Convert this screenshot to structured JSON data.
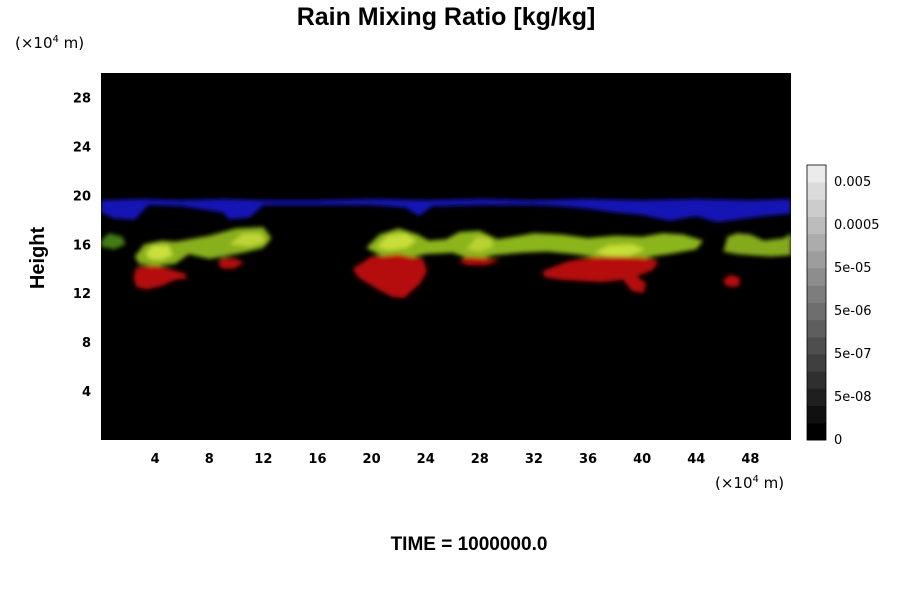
{
  "chart_data": {
    "type": "heatmap",
    "title": "Rain Mixing Ratio [kg/kg]",
    "ylabel": "Height",
    "x_unit_label": "(×10",
    "x_unit_exp": "4",
    "x_unit_tail": " m)",
    "y_unit_label": "(×10",
    "y_unit_exp": "4",
    "y_unit_tail": " m)",
    "xlim": [
      0,
      51
    ],
    "ylim": [
      0,
      30
    ],
    "x_ticks": [
      {
        "value": 4,
        "label": "4"
      },
      {
        "value": 8,
        "label": "8"
      },
      {
        "value": 12,
        "label": "12"
      },
      {
        "value": 16,
        "label": "16"
      },
      {
        "value": 20,
        "label": "20"
      },
      {
        "value": 24,
        "label": "24"
      },
      {
        "value": 28,
        "label": "28"
      },
      {
        "value": 32,
        "label": "32"
      },
      {
        "value": 36,
        "label": "36"
      },
      {
        "value": 40,
        "label": "40"
      },
      {
        "value": 44,
        "label": "44"
      },
      {
        "value": 48,
        "label": "48"
      }
    ],
    "y_ticks": [
      {
        "value": 4,
        "label": "4"
      },
      {
        "value": 8,
        "label": "8"
      },
      {
        "value": 12,
        "label": "12"
      },
      {
        "value": 16,
        "label": "16"
      },
      {
        "value": 20,
        "label": "20"
      },
      {
        "value": 24,
        "label": "24"
      },
      {
        "value": 28,
        "label": "28"
      }
    ],
    "background_color": "#000000",
    "colorbar": {
      "levels": 16,
      "labels": [
        "0",
        "5e-08",
        "5e-07",
        "5e-06",
        "5e-05",
        "0.0005",
        "0.005"
      ],
      "label_levels": [
        0,
        2.5,
        5,
        7.5,
        10,
        12.5,
        15
      ]
    },
    "regions": [
      {
        "name": "blue-band",
        "color": "#1a1ad6",
        "opacity": 0.85,
        "points": [
          [
            0,
            19.6
          ],
          [
            3,
            19.7
          ],
          [
            6,
            19.6
          ],
          [
            9,
            19.7
          ],
          [
            12,
            19.6
          ],
          [
            16,
            19.6
          ],
          [
            20,
            19.7
          ],
          [
            24,
            19.6
          ],
          [
            28,
            19.7
          ],
          [
            32,
            19.6
          ],
          [
            36,
            19.7
          ],
          [
            40,
            19.6
          ],
          [
            44,
            19.7
          ],
          [
            48,
            19.6
          ],
          [
            51,
            19.7
          ],
          [
            51,
            18.5
          ],
          [
            49,
            18.3
          ],
          [
            47,
            18
          ],
          [
            45.5,
            17.8
          ],
          [
            44,
            18.3
          ],
          [
            42,
            17.9
          ],
          [
            40,
            18.4
          ],
          [
            38,
            18.6
          ],
          [
            36,
            18.9
          ],
          [
            34,
            19.1
          ],
          [
            32,
            19.2
          ],
          [
            28,
            19.2
          ],
          [
            24.5,
            19.1
          ],
          [
            23.5,
            18.3
          ],
          [
            22.5,
            19
          ],
          [
            20,
            19.2
          ],
          [
            16,
            19.2
          ],
          [
            12,
            19.2
          ],
          [
            11,
            18.2
          ],
          [
            9.5,
            18
          ],
          [
            9,
            18.6
          ],
          [
            6,
            19.1
          ],
          [
            3.5,
            19.2
          ],
          [
            2.5,
            18
          ],
          [
            1,
            18.1
          ],
          [
            0,
            18.6
          ]
        ]
      },
      {
        "name": "green-core-1",
        "color": "#8fb81f",
        "opacity": 0.95,
        "points": [
          [
            2.5,
            15
          ],
          [
            3.2,
            16
          ],
          [
            4.5,
            16.3
          ],
          [
            5.5,
            16.2
          ],
          [
            6.5,
            16.4
          ],
          [
            8,
            16.7
          ],
          [
            10,
            17.3
          ],
          [
            12,
            17.4
          ],
          [
            12.6,
            16.5
          ],
          [
            12,
            15.7
          ],
          [
            10.5,
            15.3
          ],
          [
            9,
            15
          ],
          [
            8,
            14.8
          ],
          [
            6.5,
            15.2
          ],
          [
            5.5,
            14.4
          ],
          [
            4,
            14.2
          ],
          [
            2.8,
            14.4
          ]
        ]
      },
      {
        "name": "green-core-2",
        "color": "#93bf20",
        "opacity": 0.95,
        "points": [
          [
            19.6,
            15.7
          ],
          [
            20.6,
            16.8
          ],
          [
            22,
            17.3
          ],
          [
            23.4,
            16.8
          ],
          [
            24.2,
            16.3
          ],
          [
            25.5,
            16.4
          ],
          [
            26.5,
            17
          ],
          [
            28,
            17.1
          ],
          [
            29.3,
            16.4
          ],
          [
            30.5,
            16.6
          ],
          [
            32,
            16.9
          ],
          [
            34,
            16.8
          ],
          [
            36,
            16.5
          ],
          [
            38,
            16.7
          ],
          [
            40,
            16.6
          ],
          [
            41.5,
            16.9
          ],
          [
            43,
            16.8
          ],
          [
            44.5,
            16.3
          ],
          [
            44,
            15.6
          ],
          [
            42,
            15.2
          ],
          [
            40,
            14.9
          ],
          [
            38.5,
            14.6
          ],
          [
            37,
            14.9
          ],
          [
            35,
            15.2
          ],
          [
            33,
            15.4
          ],
          [
            31,
            15.3
          ],
          [
            29,
            15.1
          ],
          [
            27.5,
            14.7
          ],
          [
            26,
            15.3
          ],
          [
            24,
            15.2
          ],
          [
            22.5,
            14.8
          ],
          [
            21,
            14.9
          ]
        ]
      },
      {
        "name": "green-core-3",
        "color": "#8bb31e",
        "opacity": 0.95,
        "points": [
          [
            46,
            15.4
          ],
          [
            46.3,
            16.6
          ],
          [
            47,
            16.9
          ],
          [
            48,
            16.8
          ],
          [
            49,
            16.3
          ],
          [
            50.5,
            16.5
          ],
          [
            51,
            16.9
          ],
          [
            51,
            15.1
          ],
          [
            49.5,
            15
          ],
          [
            48,
            15.1
          ],
          [
            47,
            15.2
          ]
        ]
      },
      {
        "name": "green-edge-left",
        "color": "#4a8a1a",
        "opacity": 0.9,
        "points": [
          [
            0,
            16.3
          ],
          [
            0.6,
            16.9
          ],
          [
            1.6,
            16.6
          ],
          [
            1.8,
            16
          ],
          [
            1,
            15.6
          ],
          [
            0,
            15.8
          ]
        ]
      },
      {
        "name": "red-1",
        "color": "#b50d0d",
        "opacity": 1,
        "points": [
          [
            2.4,
            13.3
          ],
          [
            2.6,
            14.1
          ],
          [
            4,
            14.3
          ],
          [
            5,
            14
          ],
          [
            6.2,
            13.6
          ],
          [
            6.4,
            13.2
          ],
          [
            5.5,
            13.1
          ],
          [
            4.5,
            12.6
          ],
          [
            3.4,
            12.3
          ],
          [
            2.6,
            12.5
          ]
        ]
      },
      {
        "name": "red-1b",
        "color": "#b50d0d",
        "opacity": 1,
        "points": [
          [
            8.6,
            14.4
          ],
          [
            9,
            14.9
          ],
          [
            10,
            14.8
          ],
          [
            10.6,
            14.5
          ],
          [
            9.8,
            14
          ],
          [
            9,
            14
          ]
        ]
      },
      {
        "name": "red-2",
        "color": "#b50d0d",
        "opacity": 1,
        "points": [
          [
            18.6,
            14
          ],
          [
            20,
            15
          ],
          [
            22,
            15.2
          ],
          [
            23.8,
            14.8
          ],
          [
            24.1,
            13.8
          ],
          [
            23.6,
            12.8
          ],
          [
            22.8,
            12
          ],
          [
            22.4,
            11.6
          ],
          [
            21.5,
            11.7
          ],
          [
            20.3,
            12.4
          ],
          [
            19,
            13.3
          ]
        ]
      },
      {
        "name": "red-3",
        "color": "#b50d0d",
        "opacity": 1,
        "points": [
          [
            32.6,
            13.8
          ],
          [
            34.5,
            14.6
          ],
          [
            36.5,
            15
          ],
          [
            38.5,
            15
          ],
          [
            40.5,
            14.9
          ],
          [
            41.2,
            14.6
          ],
          [
            40.8,
            13.9
          ],
          [
            39.6,
            13.4
          ],
          [
            40.3,
            12.8
          ],
          [
            40.1,
            12
          ],
          [
            39.2,
            12.2
          ],
          [
            38.6,
            13.1
          ],
          [
            37,
            12.9
          ],
          [
            35.5,
            13
          ],
          [
            34,
            13.1
          ],
          [
            32.8,
            13.3
          ]
        ]
      },
      {
        "name": "red-4",
        "color": "#b50d0d",
        "opacity": 1,
        "points": [
          [
            46,
            13.1
          ],
          [
            46.5,
            13.5
          ],
          [
            47.2,
            13.3
          ],
          [
            47.2,
            12.6
          ],
          [
            46.6,
            12.5
          ],
          [
            46.1,
            12.7
          ]
        ]
      },
      {
        "name": "red-5",
        "color": "#b50d0d",
        "opacity": 1,
        "points": [
          [
            26.5,
            14.5
          ],
          [
            27,
            15
          ],
          [
            28.5,
            14.9
          ],
          [
            29.5,
            14.7
          ],
          [
            28.5,
            14.3
          ],
          [
            27.2,
            14.3
          ]
        ]
      },
      {
        "name": "highlight-1",
        "color": "#d0e640",
        "opacity": 0.9,
        "points": [
          [
            3.3,
            15.2
          ],
          [
            3.8,
            15.9
          ],
          [
            5,
            15.9
          ],
          [
            5.3,
            15.1
          ],
          [
            4.4,
            14.7
          ],
          [
            3.6,
            14.8
          ]
        ]
      },
      {
        "name": "highlight-2",
        "color": "#cfe23c",
        "opacity": 0.9,
        "points": [
          [
            20.4,
            15.8
          ],
          [
            21.2,
            16.7
          ],
          [
            22.5,
            16.9
          ],
          [
            23.3,
            16.3
          ],
          [
            22.6,
            15.7
          ],
          [
            21.2,
            15.5
          ]
        ]
      },
      {
        "name": "highlight-3",
        "color": "#cde23a",
        "opacity": 0.9,
        "points": [
          [
            36.5,
            15.3
          ],
          [
            37.5,
            15.9
          ],
          [
            39.2,
            16
          ],
          [
            40.2,
            15.6
          ],
          [
            39,
            15
          ],
          [
            37.6,
            15
          ]
        ]
      },
      {
        "name": "highlight-4",
        "color": "#c7dc38",
        "opacity": 0.85,
        "points": [
          [
            9.5,
            16
          ],
          [
            10.5,
            16.9
          ],
          [
            11.8,
            16.9
          ],
          [
            12.2,
            16.2
          ],
          [
            11,
            15.8
          ]
        ]
      },
      {
        "name": "highlight-5",
        "color": "#c2d736",
        "opacity": 0.85,
        "points": [
          [
            27,
            15.6
          ],
          [
            27.8,
            16.6
          ],
          [
            28.8,
            16.5
          ],
          [
            29,
            15.8
          ],
          [
            28,
            15.4
          ]
        ]
      }
    ]
  },
  "footer": {
    "time_label": "TIME = 1000000.0"
  }
}
